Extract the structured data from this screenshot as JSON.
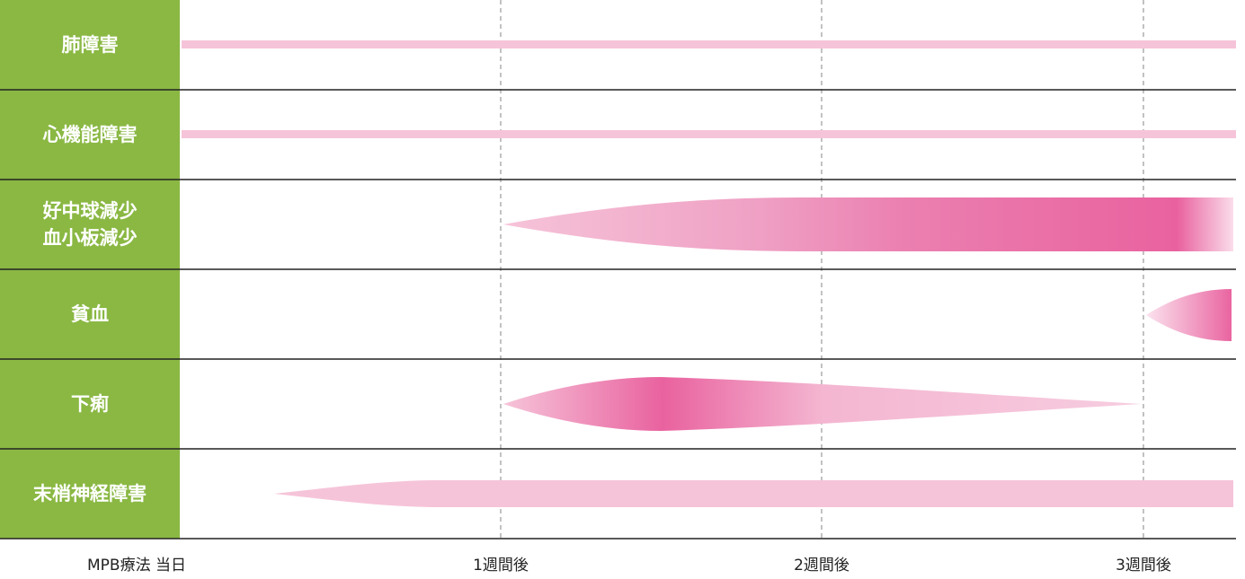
{
  "rows": [
    [
      "肺障害"
    ],
    [
      "心機能障害"
    ],
    [
      "好中球減少",
      "血小板減少"
    ],
    [
      "貧血"
    ],
    [
      "下痢"
    ],
    [
      "末梢神経障害"
    ]
  ],
  "timeline": [
    "MPB療法 当日",
    "1週間後",
    "2週間後",
    "3週間後"
  ]
}
